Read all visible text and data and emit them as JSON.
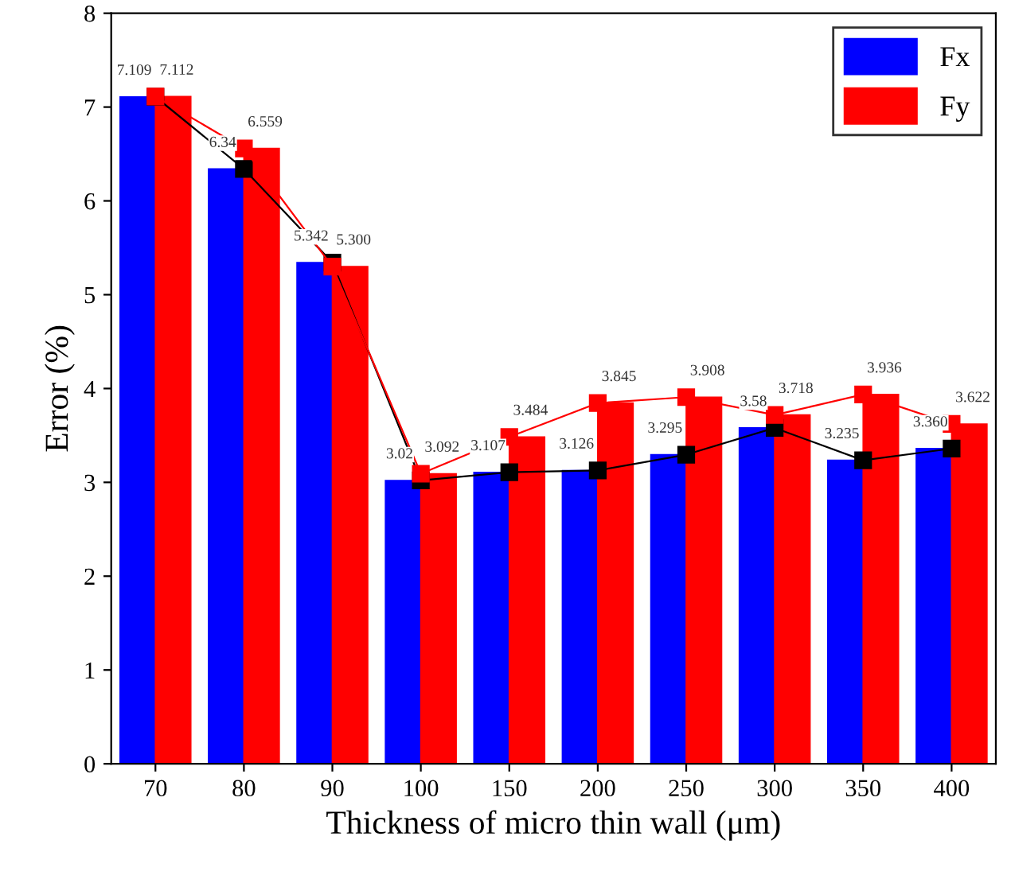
{
  "chart_data": {
    "type": "bar",
    "xlabel": "Thickness of micro thin wall (μm)",
    "ylabel": "Error (%)",
    "categories": [
      "70",
      "80",
      "90",
      "100",
      "150",
      "200",
      "250",
      "300",
      "350",
      "400"
    ],
    "series": [
      {
        "name": "Fx",
        "color": "#0000ff",
        "values": [
          7.109,
          6.34,
          5.342,
          3.02,
          3.107,
          3.126,
          3.295,
          3.58,
          3.235,
          3.36
        ],
        "value_labels": [
          "7.109",
          "6.34",
          "5.342",
          "3.02",
          "3.107",
          "3.126",
          "3.295",
          "3.58",
          "3.235",
          "3.360"
        ]
      },
      {
        "name": "Fy",
        "color": "#ff0000",
        "values": [
          7.112,
          6.559,
          5.3,
          3.092,
          3.484,
          3.845,
          3.908,
          3.718,
          3.936,
          3.622
        ],
        "value_labels": [
          "7.112",
          "6.559",
          "5.300",
          "3.092",
          "3.484",
          "3.845",
          "3.908",
          "3.718",
          "3.936",
          "3.622"
        ]
      },
      {
        "type": "line",
        "color": "#000000",
        "marker": "square",
        "values": [
          7.109,
          6.34,
          5.342,
          3.02,
          3.107,
          3.126,
          3.295,
          3.58,
          3.235,
          3.36
        ]
      },
      {
        "type": "line",
        "color": "#ff0000",
        "marker": "square",
        "values": [
          7.112,
          6.559,
          5.3,
          3.092,
          3.484,
          3.845,
          3.908,
          3.718,
          3.936,
          3.622
        ]
      }
    ],
    "ylim": [
      0,
      8
    ],
    "yticks": [
      0,
      1,
      2,
      3,
      4,
      5,
      6,
      7,
      8
    ],
    "legend": "top right",
    "grid": false
  }
}
